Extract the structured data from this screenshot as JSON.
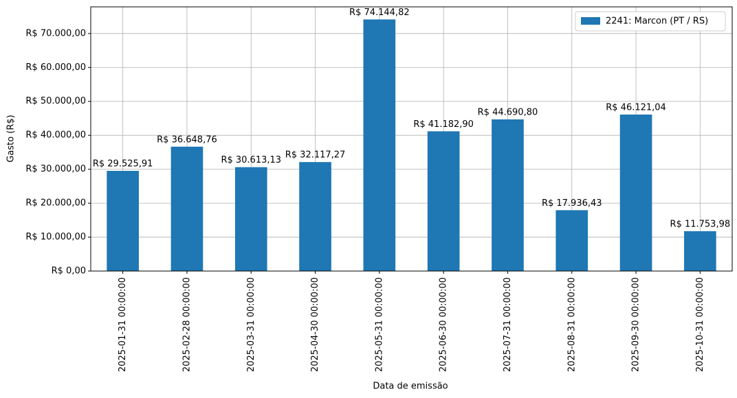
{
  "chart_data": {
    "type": "bar",
    "x_label": "Data de emissão",
    "y_label": "Gasto (R$)",
    "categories": [
      "2025-01-31 00:00:00",
      "2025-02-28 00:00:00",
      "2025-03-31 00:00:00",
      "2025-04-30 00:00:00",
      "2025-05-31 00:00:00",
      "2025-06-30 00:00:00",
      "2025-07-31 00:00:00",
      "2025-08-31 00:00:00",
      "2025-09-30 00:00:00",
      "2025-10-31 00:00:00"
    ],
    "series": [
      {
        "name": "2241: Marcon (PT / RS)",
        "color": "#1f77b4",
        "values": [
          29525.91,
          36648.76,
          30613.13,
          32117.27,
          74144.82,
          41182.9,
          44690.8,
          17936.43,
          46121.04,
          11753.98
        ],
        "value_labels": [
          "R$ 29.525,91",
          "R$ 36.648,76",
          "R$ 30.613,13",
          "R$ 32.117,27",
          "R$ 74.144,82",
          "R$ 41.182,90",
          "R$ 44.690,80",
          "R$ 17.936,43",
          "R$ 46.121,04",
          "R$ 11.753,98"
        ]
      }
    ],
    "ylim": [
      0,
      77852.06
    ],
    "yticks": [
      {
        "value": 0,
        "label": "R$ 0,00"
      },
      {
        "value": 10000,
        "label": "R$ 10.000,00"
      },
      {
        "value": 20000,
        "label": "R$ 20.000,00"
      },
      {
        "value": 30000,
        "label": "R$ 30.000,00"
      },
      {
        "value": 40000,
        "label": "R$ 40.000,00"
      },
      {
        "value": 50000,
        "label": "R$ 50.000,00"
      },
      {
        "value": 60000,
        "label": "R$ 60.000,00"
      },
      {
        "value": 70000,
        "label": "R$ 70.000,00"
      }
    ],
    "grid": true,
    "legend": "upper right"
  }
}
